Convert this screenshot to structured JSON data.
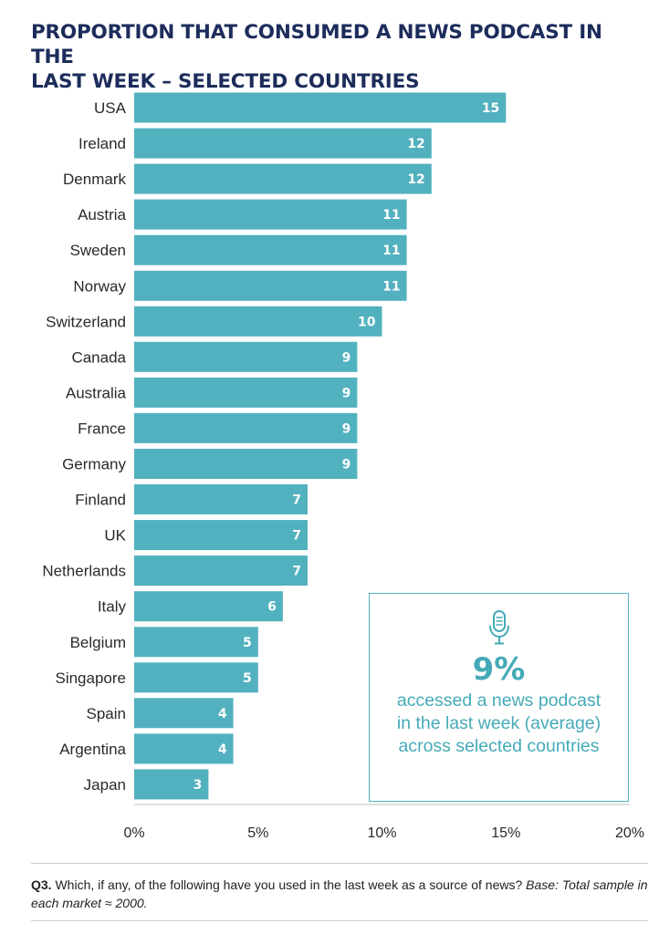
{
  "title_lines": [
    "PROPORTION THAT CONSUMED A NEWS PODCAST IN THE",
    "LAST WEEK – SELECTED COUNTRIES"
  ],
  "chart_data": {
    "type": "bar",
    "orientation": "horizontal",
    "title": "PROPORTION THAT CONSUMED A NEWS PODCAST IN THE LAST WEEK – SELECTED COUNTRIES",
    "categories": [
      "USA",
      "Ireland",
      "Denmark",
      "Austria",
      "Sweden",
      "Norway",
      "Switzerland",
      "Canada",
      "Australia",
      "France",
      "Germany",
      "Finland",
      "UK",
      "Netherlands",
      "Italy",
      "Belgium",
      "Singapore",
      "Spain",
      "Argentina",
      "Japan"
    ],
    "values": [
      15,
      12,
      12,
      11,
      11,
      11,
      10,
      9,
      9,
      9,
      9,
      7,
      7,
      7,
      6,
      5,
      5,
      4,
      4,
      3
    ],
    "xlim": [
      0,
      20
    ],
    "xticks": [
      0,
      5,
      10,
      15,
      20
    ],
    "tick_labels": [
      "0%",
      "5%",
      "10%",
      "15%",
      "20%"
    ],
    "bar_color": "#52b1bf",
    "grid": false
  },
  "callout": {
    "icon": "microphone-icon",
    "big_value": "9%",
    "lines": [
      "accessed a news podcast",
      "in the last week (average)",
      "across selected countries"
    ],
    "color": "#45aab8"
  },
  "footnote": {
    "q_label": "Q3.",
    "question": " Which, if any, of the following have you used in the last week as a source of news? ",
    "base": "Base: Total sample in each market ≈ 2000."
  }
}
